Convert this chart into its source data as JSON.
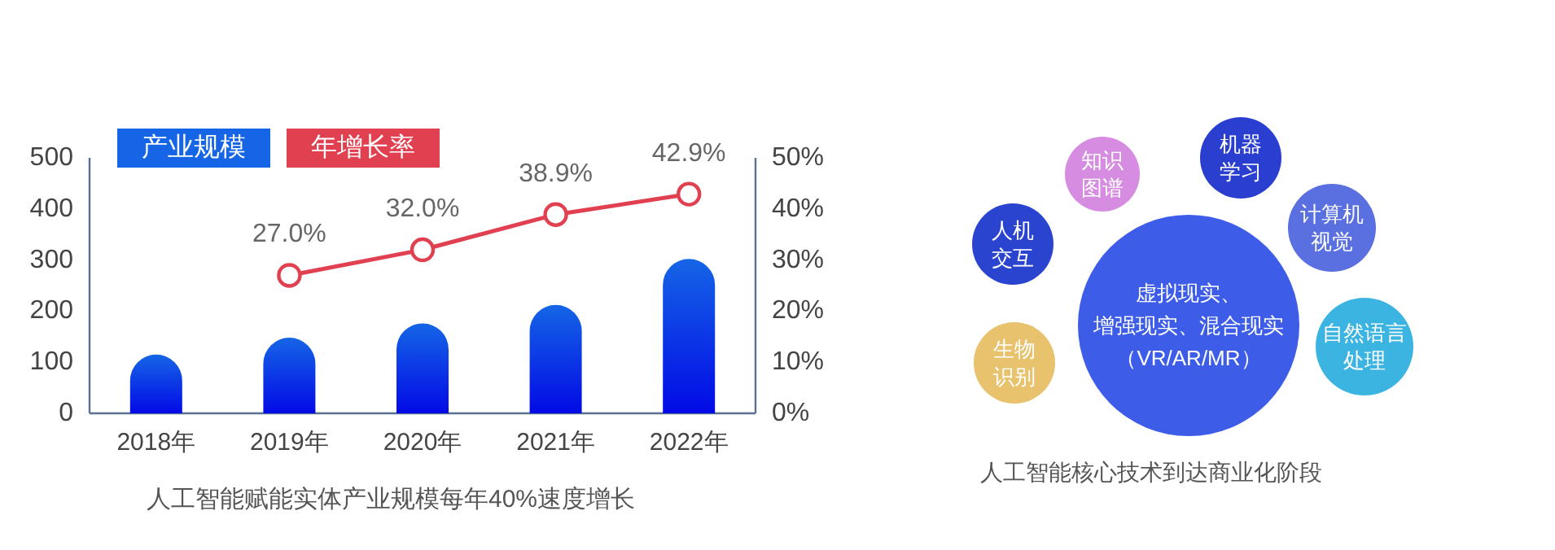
{
  "chart_data": [
    {
      "type": "bar",
      "categories": [
        "2018年",
        "2019年",
        "2020年",
        "2021年",
        "2022年"
      ],
      "series": [
        {
          "name": "产业规模",
          "type": "bar",
          "color": "#1565e6",
          "values": [
            115,
            148,
            176,
            212,
            302
          ]
        },
        {
          "name": "年增长率",
          "type": "line",
          "axis": "y2",
          "color": "#e04050",
          "values": [
            null,
            27.0,
            32.0,
            38.9,
            42.9
          ],
          "value_labels": [
            null,
            "27.0%",
            "32.0%",
            "38.9%",
            "42.9%"
          ]
        }
      ],
      "ylim": [
        0,
        500
      ],
      "yticks": [
        0,
        100,
        200,
        300,
        400,
        500
      ],
      "y2lim": [
        0,
        50
      ],
      "y2ticks": [
        {
          "value": 0,
          "label": "0%"
        },
        {
          "value": 10,
          "label": "10%"
        },
        {
          "value": 20,
          "label": "20%"
        },
        {
          "value": 30,
          "label": "30%"
        },
        {
          "value": 40,
          "label": "40%"
        },
        {
          "value": 50,
          "label": "50%"
        }
      ],
      "legend": "top left",
      "marker": "circle",
      "grid": false,
      "annotations": [
        "人工智能赋能实体产业规模每年40%速度增长"
      ]
    },
    {
      "type": "other",
      "annotations": [
        "人机交互",
        "知识图谱",
        "机器学习",
        "计算机视觉",
        "自然语言处理",
        "生物识别",
        "虚拟现实、",
        "增强现实、混合现实",
        "（VR/AR/MR）",
        "人工智能核心技术到达商业化阶段"
      ]
    }
  ]
}
